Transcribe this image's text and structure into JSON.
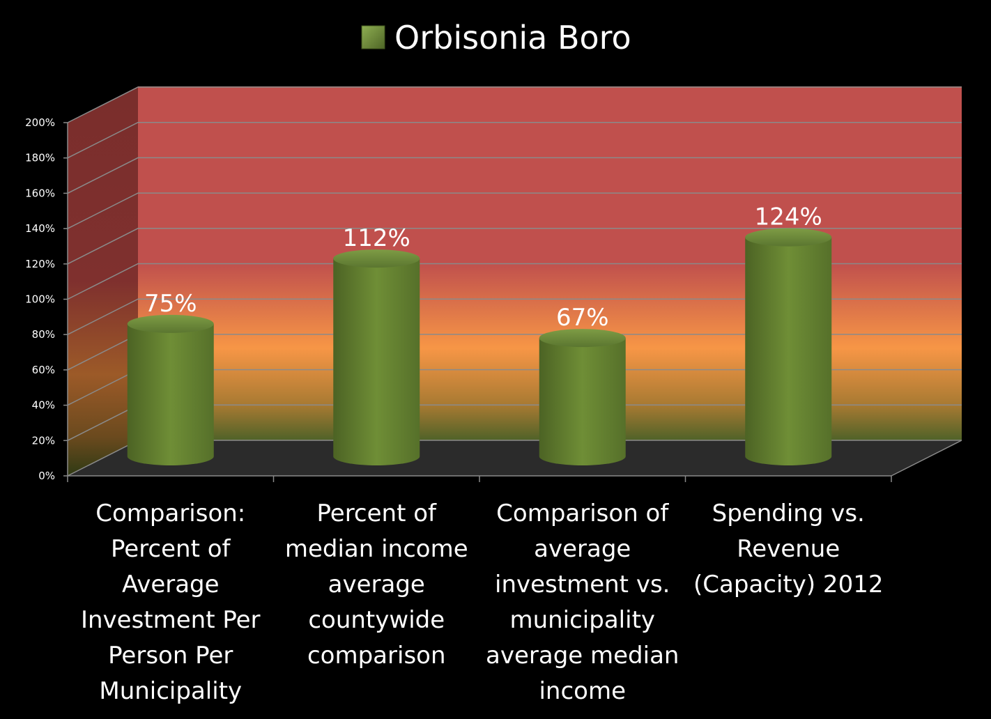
{
  "chart_data": {
    "type": "bar",
    "categories": [
      "Comparison: Percent of Average Investment Per Person Per Municipality",
      "Percent of median income average countywide comparison",
      "Comparison of average investment vs. municipality average median income",
      "Spending vs. Revenue (Capacity) 2012"
    ],
    "category_lines": [
      [
        "Comparison:",
        "Percent of",
        "Average",
        "Investment Per",
        "Person Per",
        "Municipality"
      ],
      [
        "Percent of",
        "median income",
        "average",
        "countywide",
        "comparison"
      ],
      [
        "Comparison of",
        "average",
        "investment vs.",
        "municipality",
        "average median",
        "income"
      ],
      [
        "Spending vs.",
        "Revenue",
        "(Capacity) 2012"
      ]
    ],
    "series": [
      {
        "name": "Orbisonia Boro",
        "values": [
          75,
          112,
          67,
          124
        ],
        "data_labels": [
          "75%",
          "112%",
          "67%",
          "124%"
        ],
        "color": "#6e8c36"
      }
    ],
    "ylim": [
      0,
      200
    ],
    "ytick_values": [
      0,
      20,
      40,
      60,
      80,
      100,
      120,
      140,
      160,
      180,
      200
    ],
    "ytick_labels": [
      "0%",
      "20%",
      "40%",
      "60%",
      "80%",
      "100%",
      "120%",
      "140%",
      "160%",
      "180%",
      "200%"
    ],
    "legend_position": "top",
    "grid": true,
    "style": "3d-cylinder",
    "background_colors": {
      "top": "#c0504d",
      "middle": "#f79646",
      "bottom": "#4f6228",
      "floor": "#2b2b2b",
      "page": "#000000"
    }
  }
}
